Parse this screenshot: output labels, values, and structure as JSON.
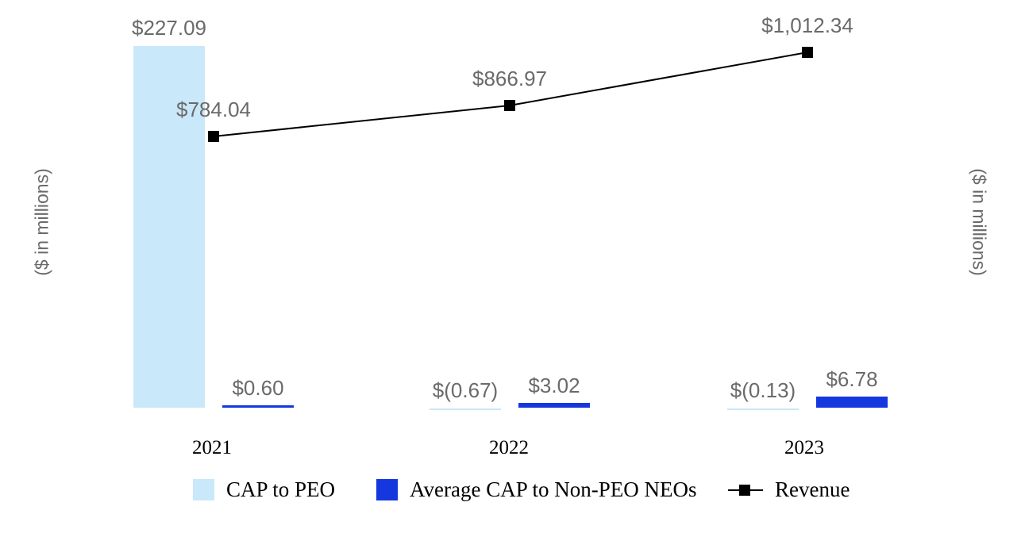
{
  "chart_data": {
    "type": "combo",
    "title": "",
    "categories": [
      "2021",
      "2022",
      "2023"
    ],
    "series": [
      {
        "name": "CAP to PEO",
        "type": "bar",
        "color": "#c9e8f9",
        "values": [
          227.09,
          -0.67,
          -0.13
        ],
        "labels": [
          "$227.09",
          "$(0.67)",
          "$(0.13)"
        ]
      },
      {
        "name": "Average CAP to Non-PEO NEOs",
        "type": "bar",
        "color": "#1438dd",
        "values": [
          0.6,
          3.02,
          6.78
        ],
        "labels": [
          "$0.60",
          "$3.02",
          "$6.78"
        ]
      },
      {
        "name": "Revenue",
        "type": "line",
        "color": "#000000",
        "marker": "square",
        "values": [
          784.04,
          866.97,
          1012.34
        ],
        "labels": [
          "$784.04",
          "$866.97",
          "$1,012.34"
        ]
      }
    ],
    "ylabel_left": "($ in millions)",
    "ylabel_right": "($ in millions)",
    "xlabel": "",
    "grid": false,
    "legend_position": "bottom",
    "value_label_color": "#6a6a6a",
    "left_axis_range_implied": [
      0,
      240
    ],
    "right_axis_range_implied": [
      700,
      1050
    ]
  }
}
